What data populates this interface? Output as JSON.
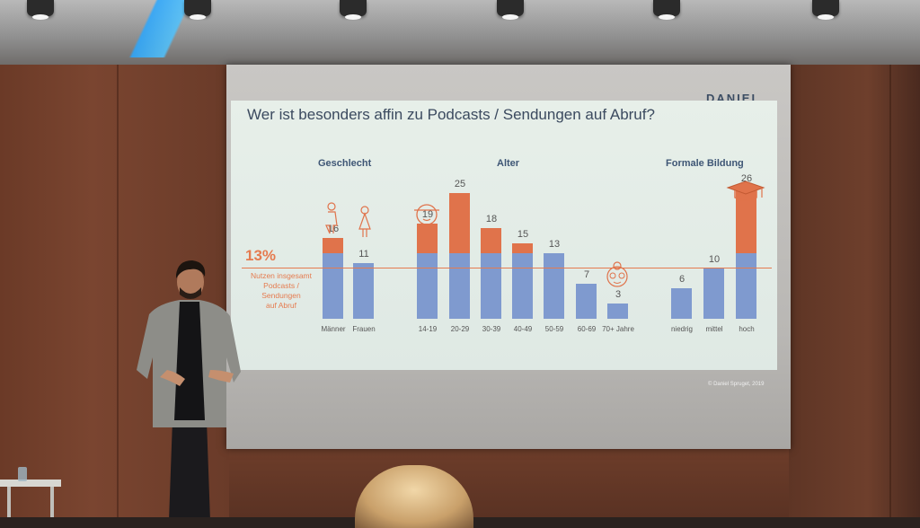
{
  "slide": {
    "title": "Wer ist besonders affin zu Podcasts / Sendungen auf Abruf?",
    "brand": "DANIEL",
    "overall": {
      "value": "13%",
      "label_lines": [
        "Nutzen insgesamt",
        "Podcasts /",
        "Sendungen",
        "auf Abruf"
      ]
    },
    "sections": {
      "gender": "Geschlecht",
      "age": "Alter",
      "education": "Formale Bildung"
    },
    "copyright": "© Daniel Spruget, 2019"
  },
  "chart_data": {
    "type": "bar",
    "title": "Wer ist besonders affin zu Podcasts / Sendungen auf Abruf?",
    "reference_line": 13,
    "categories": [
      "Männer",
      "Frauen",
      "14-19",
      "20-29",
      "30-39",
      "40-49",
      "50-59",
      "60-69",
      "70+ Jahre",
      "niedrig",
      "mittel",
      "hoch"
    ],
    "values": [
      16,
      11,
      19,
      25,
      18,
      15,
      13,
      7,
      3,
      6,
      10,
      26
    ],
    "groups": [
      {
        "name": "Geschlecht",
        "categories": [
          "Männer",
          "Frauen"
        ]
      },
      {
        "name": "Alter",
        "categories": [
          "14-19",
          "20-29",
          "30-39",
          "40-49",
          "50-59",
          "60-69",
          "70+ Jahre"
        ]
      },
      {
        "name": "Formale Bildung",
        "categories": [
          "niedrig",
          "mittel",
          "hoch"
        ]
      }
    ],
    "ylim": [
      0,
      28
    ],
    "colors": {
      "base": "#7f9acf",
      "above_reference": "#e0734b",
      "reference_line": "#e57b4f"
    }
  },
  "icons": [
    "female-icon",
    "female-icon",
    "young-face-icon",
    "elderly-face-icon",
    "graduation-cap-icon"
  ]
}
